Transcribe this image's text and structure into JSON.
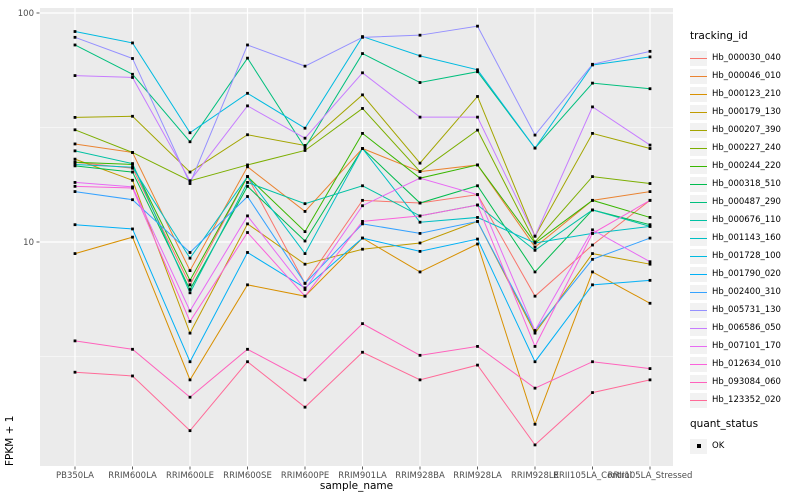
{
  "chart_data": {
    "type": "line",
    "title": "",
    "xlabel": "sample_name",
    "ylabel": "FPKM + 1",
    "x_categories": [
      "PB350LA",
      "RRIM600LA",
      "RRIM600LE",
      "RRIM600SE",
      "RRIM600PE",
      "RRIM901LA",
      "RRIM928BA",
      "RRIM928LA",
      "RRIM928LE",
      "RRII105LA_Control",
      "RRII105LA_Stressed"
    ],
    "y_scale": "log10",
    "y_ticks": [
      10,
      100
    ],
    "y_minor_ticks": [
      3.1623,
      31.623
    ],
    "ylim": [
      1.05,
      105
    ],
    "grid": true,
    "legend_position": "right",
    "panel_bg": "#EBEBEB",
    "grid_color": "#FFFFFF",
    "axis_text_color": "#4D4D4D",
    "tick_color": "#333333",
    "point": {
      "shape": "square",
      "color": "#000000"
    },
    "legend": {
      "tracking_title": "tracking_id",
      "quant_title": "quant_status",
      "quant_items": [
        "OK"
      ]
    },
    "series": [
      {
        "name": "Hb_000030_040",
        "color": "#F8766D",
        "values": [
          22.3,
          21.0,
          6.5,
          19.3,
          6.6,
          15.2,
          14.8,
          16.1,
          5.8,
          9.7,
          15.2
        ]
      },
      {
        "name": "Hb_000046_010",
        "color": "#EA8331",
        "values": [
          26.8,
          24.6,
          7.5,
          21.3,
          13.6,
          25.6,
          20.3,
          21.7,
          9.5,
          15.2,
          16.6
        ]
      },
      {
        "name": "Hb_000123_210",
        "color": "#D89000",
        "values": [
          8.9,
          10.5,
          2.5,
          6.5,
          5.8,
          10.4,
          7.4,
          9.8,
          1.6,
          7.4,
          5.4
        ]
      },
      {
        "name": "Hb_000179_130",
        "color": "#C09B00",
        "values": [
          23.0,
          18.6,
          4.0,
          12.0,
          8.0,
          9.3,
          9.9,
          12.3,
          4.0,
          8.9,
          8.0
        ]
      },
      {
        "name": "Hb_000207_390",
        "color": "#A3A500",
        "values": [
          35.0,
          35.4,
          20.2,
          29.4,
          26.4,
          43.9,
          22.1,
          43.2,
          10.6,
          29.8,
          25.6
        ]
      },
      {
        "name": "Hb_000227_240",
        "color": "#7CAE00",
        "values": [
          30.9,
          24.6,
          18.5,
          21.7,
          25.1,
          38.3,
          20.3,
          30.8,
          10.0,
          19.3,
          18.0
        ]
      },
      {
        "name": "Hb_000244_220",
        "color": "#39B600",
        "values": [
          22.3,
          21.8,
          6.8,
          19.3,
          11.1,
          29.8,
          19.0,
          21.7,
          9.9,
          15.2,
          12.8
        ]
      },
      {
        "name": "Hb_000318_510",
        "color": "#00BB4E",
        "values": [
          21.5,
          20.2,
          6.2,
          17.5,
          10.1,
          25.6,
          14.8,
          17.6,
          7.4,
          13.8,
          11.9
        ]
      },
      {
        "name": "Hb_000487_290",
        "color": "#00BF7D",
        "values": [
          72.5,
          54.0,
          27.4,
          63.5,
          25.8,
          66.5,
          49.7,
          55.4,
          25.7,
          49.4,
          46.7
        ]
      },
      {
        "name": "Hb_000676_110",
        "color": "#00C1A3",
        "values": [
          25.0,
          22.0,
          6.0,
          18.2,
          14.7,
          17.6,
          13.0,
          14.5,
          9.2,
          13.8,
          11.7
        ]
      },
      {
        "name": "Hb_001143_160",
        "color": "#00BFC4",
        "values": [
          21.8,
          21.2,
          8.5,
          19.3,
          8.9,
          25.6,
          12.2,
          12.8,
          9.9,
          10.9,
          11.7
        ]
      },
      {
        "name": "Hb_001728_100",
        "color": "#00BAE0",
        "values": [
          83.0,
          74.0,
          30.0,
          44.6,
          31.4,
          78.9,
          65.0,
          56.5,
          25.7,
          59.3,
          64.3
        ]
      },
      {
        "name": "Hb_001790_020",
        "color": "#00B0F6",
        "values": [
          11.9,
          11.4,
          3.0,
          9.0,
          6.3,
          10.4,
          9.1,
          10.3,
          3.0,
          6.5,
          6.8
        ]
      },
      {
        "name": "Hb_002400_310",
        "color": "#35A2FF",
        "values": [
          16.6,
          15.3,
          9.0,
          15.8,
          6.6,
          12.0,
          10.9,
          12.3,
          4.1,
          8.4,
          10.4
        ]
      },
      {
        "name": "Hb_005731_130",
        "color": "#9590FF",
        "values": [
          78.3,
          63.3,
          18.0,
          72.5,
          58.6,
          78.3,
          80.0,
          87.6,
          29.3,
          59.7,
          68.0
        ]
      },
      {
        "name": "Hb_006586_050",
        "color": "#C77CFF",
        "values": [
          53.3,
          52.3,
          18.5,
          39.3,
          28.4,
          54.8,
          35.1,
          35.1,
          10.6,
          38.9,
          26.5
        ]
      },
      {
        "name": "Hb_007101_170",
        "color": "#E76BF3",
        "values": [
          18.2,
          17.4,
          5.0,
          13.0,
          6.2,
          14.4,
          19.0,
          16.1,
          4.1,
          11.3,
          8.2
        ]
      },
      {
        "name": "Hb_012634_010",
        "color": "#FA62DB",
        "values": [
          17.5,
          17.2,
          4.5,
          11.0,
          5.8,
          12.3,
          13.0,
          14.5,
          3.5,
          10.9,
          15.2
        ]
      },
      {
        "name": "Hb_093084_060",
        "color": "#FF62BC",
        "values": [
          3.7,
          3.4,
          2.1,
          3.4,
          2.5,
          4.4,
          3.2,
          3.5,
          2.3,
          3.0,
          2.8
        ]
      },
      {
        "name": "Hb_123352_020",
        "color": "#FF6A98",
        "values": [
          2.7,
          2.6,
          1.5,
          3.0,
          1.9,
          3.3,
          2.5,
          2.9,
          1.3,
          2.2,
          2.5
        ]
      }
    ]
  }
}
